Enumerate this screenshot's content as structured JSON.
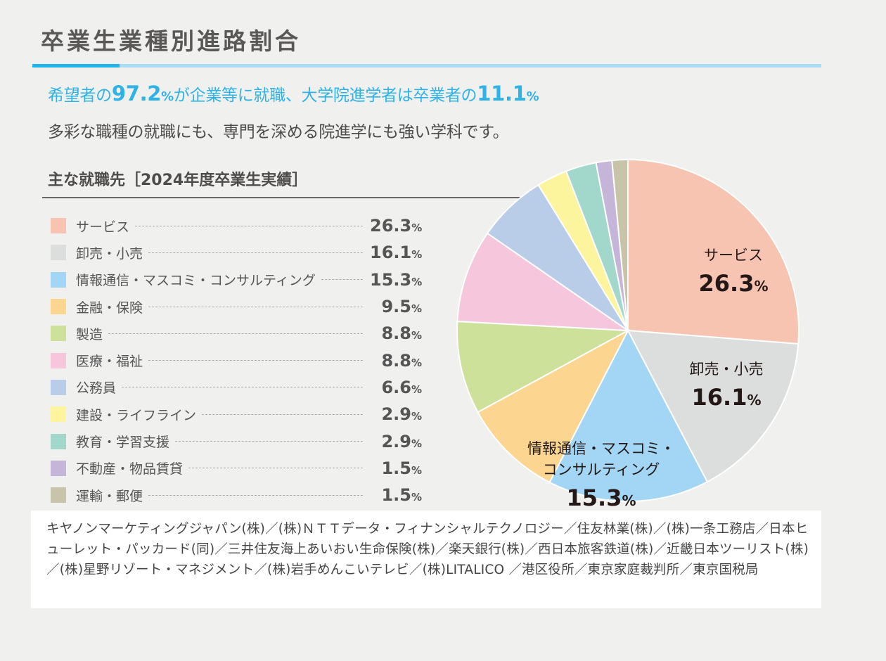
{
  "header": {
    "title": "卒業生業種別進路割合"
  },
  "lead": {
    "line1_pre": "希望者の",
    "line1_num1": "97.2",
    "line1_pct1": "%",
    "line1_mid": "が企業等に就職、大学院進学者は卒業者の",
    "line1_num2": "11.1",
    "line1_pct2": "%",
    "line2": "多彩な職種の就職にも、専門を深める院進学にも強い学科です。"
  },
  "subheading": "主な就職先［2024年度卒業生実績］",
  "colors": {
    "accent": "#22b5ea",
    "accent_light": "#aadcf5"
  },
  "chart_data": {
    "type": "pie",
    "title": "主な就職先［2024年度卒業生実績］",
    "unit": "%",
    "start": "12 o'clock, clockwise",
    "legend_position": "left",
    "slices": [
      {
        "label": "サービス",
        "value": 26.3,
        "color": "#f7c4b2",
        "callout": "サービス"
      },
      {
        "label": "卸売・小売",
        "value": 16.1,
        "color": "#dcdddd",
        "callout": "卸売・小売"
      },
      {
        "label": "情報通信・マスコミ・コンサルティング",
        "value": 15.3,
        "color": "#a3d6f5",
        "callout": "情報通信・マスコミ・\nコンサルティング"
      },
      {
        "label": "金融・保険",
        "value": 9.5,
        "color": "#fcd590"
      },
      {
        "label": "製造",
        "value": 8.8,
        "color": "#cde19a"
      },
      {
        "label": "医療・福祉",
        "value": 8.8,
        "color": "#f6c6dc"
      },
      {
        "label": "公務員",
        "value": 6.6,
        "color": "#b9cde9"
      },
      {
        "label": "建設・ライフライン",
        "value": 2.9,
        "color": "#fdf59d"
      },
      {
        "label": "教育・学習支援",
        "value": 2.9,
        "color": "#a2d8cb"
      },
      {
        "label": "不動産・物品賃貸",
        "value": 1.5,
        "color": "#c4b5d9"
      },
      {
        "label": "運輸・郵便",
        "value": 1.5,
        "color": "#c8c4aa"
      }
    ]
  },
  "employers": "キヤノンマーケティングジャパン(株)／(株)ＮＴＴデータ・フィナンシャルテクノロジー／住友林業(株)／(株)一条工務店／日本ヒューレット・パッカード(同)／三井住友海上あいおい生命保険(株)／楽天銀行(株)／西日本旅客鉄道(株)／近畿日本ツーリスト(株)／(株)星野リゾート・マネジメント／(株)岩手めんこいテレビ／(株)LITALICO ／港区役所／東京家庭裁判所／東京国税局"
}
